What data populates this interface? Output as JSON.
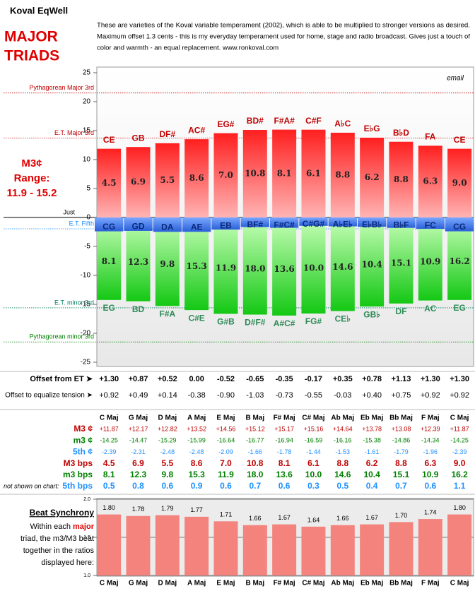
{
  "header": {
    "title": "Koval EqWell",
    "heading": [
      "MAJOR",
      "TRIADS"
    ],
    "description": [
      "These are varieties of the Koval variable temperament (2002), which is able to be multiplied to stronger versions as desired.",
      "Maximum offset 1.3 cents - this is my everyday temperament used for home, stage and radio broadcast. Gives just a touch of",
      "color and warmth - an equal replacement. www.ronkoval.com"
    ],
    "email": "email",
    "side_note": [
      "M3¢",
      "Range:",
      "11.9 - 15.2"
    ]
  },
  "chart_data": [
    {
      "type": "bar",
      "ylim": [
        -25,
        25
      ],
      "yticks": [
        -25,
        -20,
        -15,
        -10,
        -5,
        0,
        5,
        10,
        15,
        20,
        25
      ],
      "grid": false,
      "series": [
        {
          "color": "#ff1f1f",
          "values": [
            11.87,
            12.17,
            12.82,
            13.52,
            14.56,
            15.12,
            15.17,
            15.16,
            14.64,
            13.78,
            13.08,
            12.39,
            11.87
          ],
          "labels": [
            "CE",
            "GB",
            "DF#",
            "AC#",
            "EG#",
            "BD#",
            "F#A#",
            "C#F",
            "A♭C",
            "E♭G",
            "B♭D",
            "FA",
            "CE"
          ],
          "label_color": "#c00000",
          "inner_row": 3
        },
        {
          "color": "#14c814",
          "values": [
            -14.25,
            -14.47,
            -15.29,
            -15.99,
            -16.64,
            -16.77,
            -16.94,
            -16.59,
            -16.16,
            -15.38,
            -14.86,
            -14.34,
            -14.25
          ],
          "labels": [
            "EG",
            "BD",
            "F#A",
            "C#E",
            "G#B",
            "D#F#",
            "A#C#",
            "FG#",
            "CE♭",
            "GB♭",
            "DF",
            "AC",
            "EG"
          ],
          "label_color": "#2e8b57",
          "inner_row": 4
        },
        {
          "color": "#2a5fd8",
          "values": [
            -2.39,
            -2.31,
            -2.48,
            -2.48,
            -2.09,
            -1.66,
            -1.78,
            -1.44,
            -1.53,
            -1.61,
            -1.79,
            -1.96,
            -2.39
          ],
          "labels": [
            "CG",
            "GD",
            "DA",
            "AE",
            "EB",
            "BF#",
            "F#C#",
            "C#G#",
            "A♭E♭",
            "E♭B♭",
            "B♭F",
            "FC",
            "CG"
          ],
          "label_color": "#0a2a7a"
        }
      ],
      "reference_lines": [
        {
          "label": "Pythagorean Major 3rd",
          "value": 21.5,
          "color": "#c00000"
        },
        {
          "label": "E.T. Major 3rd",
          "value": 13.7,
          "color": "#c00000"
        },
        {
          "label": "Just",
          "value": 0,
          "color": "#000000"
        },
        {
          "label": "E.T. Fifth",
          "value": -1.96,
          "color": "#1e90ff"
        },
        {
          "label": "E.T. minor 3rd",
          "value": -15.6,
          "color": "#008060"
        },
        {
          "label": "Pythagorean minor 3rd",
          "value": -21.5,
          "color": "#008000"
        }
      ]
    },
    {
      "type": "bar",
      "ylim": [
        1,
        2
      ],
      "yticks": [
        {
          "value": 1,
          "label": "1.0"
        },
        1.5,
        {
          "value": 2,
          "label": "2.0"
        }
      ],
      "grid": true,
      "color": "#f4837d",
      "categories": [
        "C Maj",
        "G Maj",
        "D Maj",
        "A Maj",
        "E Maj",
        "B Maj",
        "F# Maj",
        "C# Maj",
        "Ab Maj",
        "Eb Maj",
        "Bb Maj",
        "F Maj",
        "C Maj"
      ],
      "values": [
        1.8,
        1.78,
        1.79,
        1.77,
        1.71,
        1.66,
        1.67,
        1.64,
        1.66,
        1.67,
        1.7,
        1.74,
        1.8
      ],
      "value_labels": [
        "1.80",
        "1.78",
        "1.79",
        "1.77",
        "1.71",
        "1.66",
        "1.67",
        "1.64",
        "1.66",
        "1.67",
        "1.70",
        "1.74",
        "1.80"
      ]
    }
  ],
  "offsets": {
    "rows": [
      {
        "label": "Offset from ET ➤",
        "cells": [
          "+1.30",
          "+0.87",
          "+0.52",
          "0.00",
          "-0.52",
          "-0.65",
          "-0.35",
          "-0.17",
          "+0.35",
          "+0.78",
          "+1.13",
          "+1.30",
          "+1.30"
        ]
      },
      {
        "label": "Offset to equalize tension ➤",
        "cells": [
          "+0.92",
          "+0.49",
          "+0.14",
          "-0.38",
          "-0.90",
          "-1.03",
          "-0.73",
          "-0.55",
          "-0.03",
          "+0.40",
          "+0.75",
          "+0.92",
          "+0.92"
        ]
      }
    ]
  },
  "table": {
    "columns": [
      "C Maj",
      "G Maj",
      "D Maj",
      "A Maj",
      "E Maj",
      "B Maj",
      "F# Maj",
      "C# Maj",
      "Ab Maj",
      "Eb Maj",
      "Bb Maj",
      "F Maj",
      "C Maj"
    ],
    "rows": [
      {
        "label": "M3 ¢",
        "color": "#c00000",
        "cells": [
          "+11.87",
          "+12.17",
          "+12.82",
          "+13.52",
          "+14.56",
          "+15.12",
          "+15.17",
          "+15.16",
          "+14.64",
          "+13.78",
          "+13.08",
          "+12.39",
          "+11.87"
        ]
      },
      {
        "label": "m3 ¢",
        "color": "#008000",
        "cells": [
          "-14.25",
          "-14.47",
          "-15.29",
          "-15.99",
          "-16.64",
          "-16.77",
          "-16.94",
          "-16.59",
          "-16.16",
          "-15.38",
          "-14.86",
          "-14.34",
          "-14.25"
        ]
      },
      {
        "label": "5th ¢",
        "color": "#1e90ff",
        "cells": [
          "-2.39",
          "-2.31",
          "-2.48",
          "-2.48",
          "-2.09",
          "-1.66",
          "-1.78",
          "-1.44",
          "-1.53",
          "-1.61",
          "-1.79",
          "-1.96",
          "-2.39"
        ]
      },
      {
        "label": "M3 bps",
        "color": "#c00000",
        "cells": [
          "4.5",
          "6.9",
          "5.5",
          "8.6",
          "7.0",
          "10.8",
          "8.1",
          "6.1",
          "8.8",
          "6.2",
          "8.8",
          "6.3",
          "9.0"
        ]
      },
      {
        "label": "m3 bps",
        "color": "#008000",
        "cells": [
          "8.1",
          "12.3",
          "9.8",
          "15.3",
          "11.9",
          "18.0",
          "13.6",
          "10.0",
          "14.6",
          "10.4",
          "15.1",
          "10.9",
          "16.2"
        ]
      },
      {
        "label": "5th bps",
        "color": "#1e90ff",
        "cells": [
          "0.5",
          "0.8",
          "0.6",
          "0.9",
          "0.6",
          "0.7",
          "0.6",
          "0.3",
          "0.5",
          "0.4",
          "0.7",
          "0.6",
          "1.1"
        ]
      }
    ],
    "note": "not shown on chart:"
  },
  "beat_text": {
    "title": "Beat Synchrony",
    "lines": [
      "Within each ",
      "major",
      "triad, the m3/M3 beat",
      "together in the ratios",
      "displayed here:"
    ]
  }
}
